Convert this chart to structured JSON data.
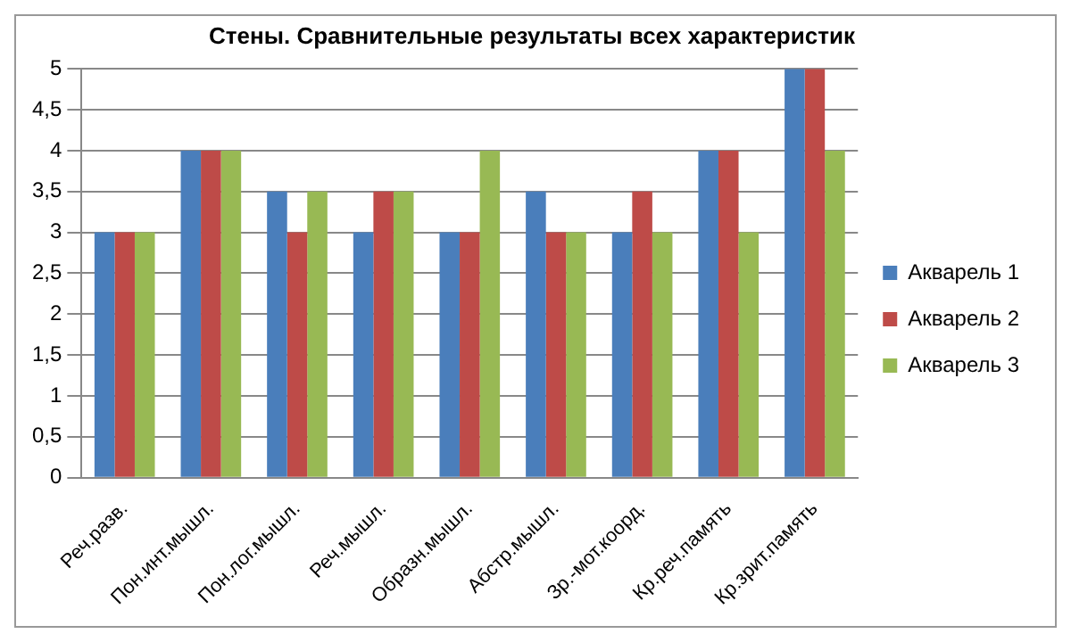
{
  "chart_data": {
    "type": "bar",
    "title": "Стены. Сравнительные результаты всех характеристик",
    "categories": [
      "Реч.разв.",
      "Пон.инт.мышл.",
      "Пон.лог.мышл.",
      "Реч.мышл.",
      "Образн.мышл.",
      "Абстр.мышл.",
      "Зр.-мот.коорд.",
      "Кр.реч.память",
      "Кр.зрит.память"
    ],
    "series": [
      {
        "name": "Акварель 1",
        "color": "#4a7ebb",
        "values": [
          3,
          4,
          3.5,
          3,
          3,
          3.5,
          3,
          4,
          5
        ]
      },
      {
        "name": "Акварель 2",
        "color": "#be4b48",
        "values": [
          3,
          4,
          3,
          3.5,
          3,
          3,
          3.5,
          4,
          5
        ]
      },
      {
        "name": "Акварель 3",
        "color": "#98b954",
        "values": [
          3,
          4,
          3.5,
          3.5,
          4,
          3,
          3,
          3,
          4
        ]
      }
    ],
    "ylim": [
      0,
      5
    ],
    "yticks": [
      0,
      {
        "value": 0.5,
        "label": "0,5"
      },
      1,
      {
        "value": 1.5,
        "label": "1,5"
      },
      2,
      {
        "value": 2.5,
        "label": "2,5"
      },
      3,
      {
        "value": 3.5,
        "label": "3,5"
      },
      4,
      {
        "value": 4.5,
        "label": "4,5"
      },
      5
    ],
    "grid": "y",
    "legend": "right"
  }
}
